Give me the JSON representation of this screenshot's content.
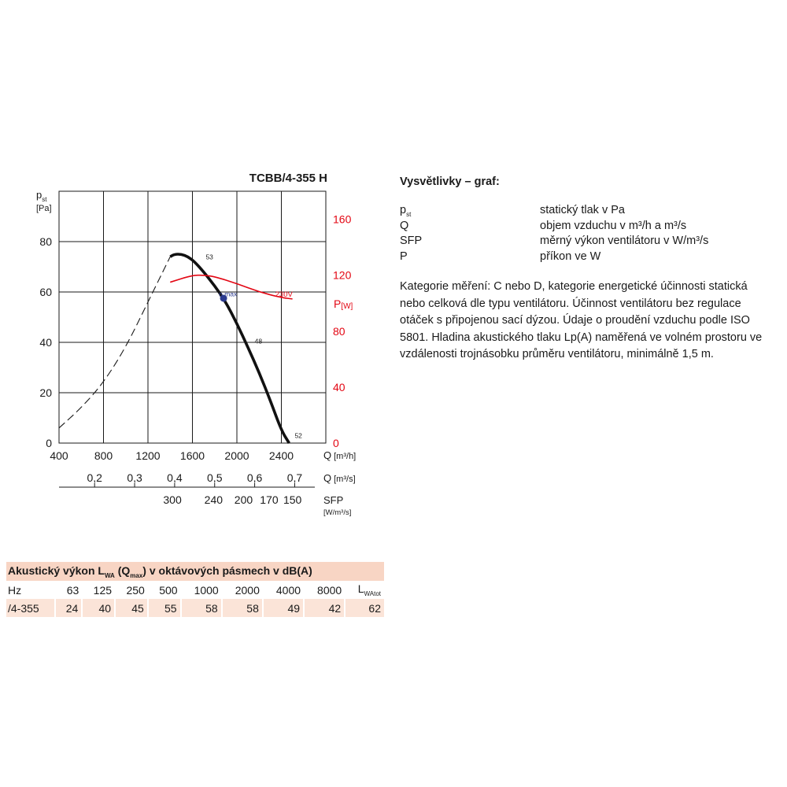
{
  "chart_data": {
    "type": "line",
    "title": "TCBB/4-355 H",
    "y_axis": {
      "label": "p",
      "label_sub": "st",
      "unit": "[Pa]",
      "range": [
        0,
        100
      ],
      "ticks": [
        0,
        20,
        40,
        60,
        80
      ]
    },
    "y2_axis": {
      "label": "P",
      "unit": "[W]",
      "color": "#e30613",
      "range": [
        0,
        180
      ],
      "ticks": [
        0,
        40,
        80,
        120,
        160
      ]
    },
    "x_axis_primary": {
      "label": "Q",
      "unit": "[m³/h]",
      "range": [
        400,
        2800
      ],
      "ticks": [
        400,
        800,
        1200,
        1600,
        2000,
        2400
      ]
    },
    "x_axis_secondary": {
      "label": "Q",
      "unit": "[m³/s]",
      "ticks": [
        "0,2",
        "0,3",
        "0,4",
        "0,5",
        "0,6",
        "0,7"
      ],
      "values": [
        0.2,
        0.3,
        0.4,
        0.5,
        0.6,
        0.7
      ]
    },
    "x_axis_sfp": {
      "label": "SFP",
      "unit": "[W/m³/s]",
      "ticks": [
        "300",
        "240",
        "200",
        "170",
        "150"
      ],
      "at_q_m3h": [
        1420,
        1790,
        2060,
        2290,
        2500
      ]
    },
    "grid": true,
    "series": [
      {
        "name": "",
        "style": "dashed",
        "axis": "y",
        "x": [
          400,
          600,
          800,
          1000,
          1200,
          1400
        ],
        "y": [
          6,
          14,
          24,
          38,
          56,
          74
        ]
      },
      {
        "name": "",
        "style": "solid-thick",
        "axis": "y",
        "x": [
          1400,
          1440,
          1500,
          1560,
          1620,
          1700,
          1800,
          1900,
          2000,
          2100,
          2200,
          2300,
          2400,
          2470
        ],
        "y": [
          74,
          75,
          75,
          74,
          72,
          68,
          62.5,
          56,
          47.5,
          38,
          28,
          17,
          5,
          0
        ]
      },
      {
        "name": "230V",
        "style": "solid",
        "axis": "y2",
        "color": "#e30613",
        "x": [
          1400,
          1600,
          1700,
          1800,
          2000,
          2200,
          2400,
          2500
        ],
        "y": [
          115,
          120,
          120,
          119,
          114,
          108,
          104,
          103
        ]
      }
    ],
    "annotations": [
      {
        "text": "53",
        "x": 1720,
        "y": 73
      },
      {
        "text": "η max",
        "x": 1930,
        "y": 58,
        "marker": true,
        "marker_x": 1880,
        "marker_y": 57.5
      },
      {
        "text": "48",
        "x": 2160,
        "y": 39.5
      },
      {
        "text": "52",
        "x": 2520,
        "y": 2
      }
    ]
  },
  "legend": {
    "title": "Vysvětlivky – graf:",
    "rows": [
      {
        "symbol": "p",
        "symbol_sub": "st",
        "desc": "statický tlak v Pa"
      },
      {
        "symbol": "Q",
        "symbol_sub": "",
        "desc": "objem vzduchu v m³/h a m³/s"
      },
      {
        "symbol": "SFP",
        "symbol_sub": "",
        "desc": "měrný výkon ventilátoru v W/m³/s"
      },
      {
        "symbol": "P",
        "symbol_sub": "",
        "desc": "příkon ve W"
      }
    ],
    "note": "Kategorie měření: C nebo D, kategorie energetické účinnosti statická nebo celková dle typu ventilátoru. Účinnost ventilátoru bez regulace otáček s připojenou sací dýzou. Údaje o proudění vzduchu podle ISO 5801. Hladina akustického tlaku Lp(A) naměřená ve volném prostoru ve vzdálenosti trojnásobku průměru ventilátoru, minimálně 1,5 m."
  },
  "acoustic": {
    "title_a": "Akustický výkon L",
    "title_a_sub": "WA",
    "title_b": " (Q",
    "title_b_sub": "max",
    "title_c": ") v oktávových pásmech v dB(A)",
    "header": [
      "Hz",
      "63",
      "125",
      "250",
      "500",
      "1000",
      "2000",
      "4000",
      "8000"
    ],
    "header_last": "L",
    "header_last_sub": "WAtot",
    "row": [
      "/4-355",
      "24",
      "40",
      "45",
      "55",
      "58",
      "58",
      "49",
      "42",
      "62"
    ],
    "colors": {
      "title_bg": "#f8d5c4",
      "row_bg": "#fbe4d8"
    }
  }
}
